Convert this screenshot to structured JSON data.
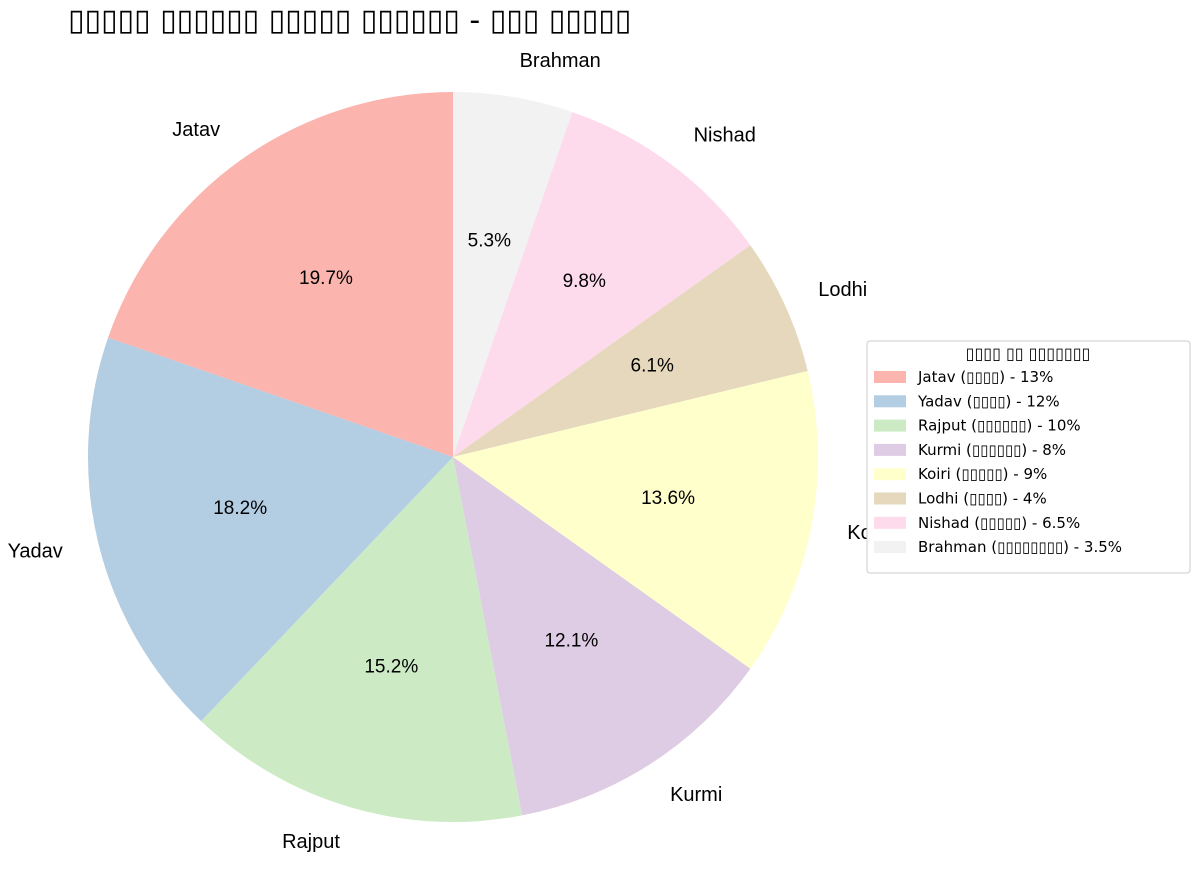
{
  "chart_data": {
    "type": "pie",
    "title": "▯▯▯▯▯ ▯▯▯▯▯▯ ▯▯▯▯▯ ▯▯▯▯▯▯ - ▯▯▯ ▯▯▯▯▯",
    "start_angle_deg": 90,
    "direction": "clockwise",
    "slices": [
      {
        "label": "Brahman",
        "value": 3.5,
        "pct_label": "5.3%",
        "color": "#f2f2f2",
        "legend": "Brahman (▯▯▯▯▯▯▯▯) - 3.5%"
      },
      {
        "label": "Nishad",
        "value": 6.5,
        "pct_label": "9.8%",
        "color": "#fddaec",
        "legend": "Nishad (▯▯▯▯▯) - 6.5%"
      },
      {
        "label": "Lodhi",
        "value": 4,
        "pct_label": "6.1%",
        "color": "#e5d8bd",
        "legend": "Lodhi (▯▯▯▯) - 4%"
      },
      {
        "label": "Koiri",
        "value": 9,
        "pct_label": "13.6%",
        "color": "#ffffcc",
        "legend": "Koiri (▯▯▯▯▯) - 9%"
      },
      {
        "label": "Kurmi",
        "value": 8,
        "pct_label": "12.1%",
        "color": "#decbe4",
        "legend": "Kurmi (▯▯▯▯▯▯) - 8%"
      },
      {
        "label": "Rajput",
        "value": 10,
        "pct_label": "15.2%",
        "color": "#ccebc5",
        "legend": "Rajput (▯▯▯▯▯▯) - 10%"
      },
      {
        "label": "Yadav",
        "value": 12,
        "pct_label": "18.2%",
        "color": "#b3cde3",
        "legend": "Yadav (▯▯▯▯) - 12%"
      },
      {
        "label": "Jatav",
        "value": 13,
        "pct_label": "19.7%",
        "color": "#fbb4ae",
        "legend": "Jatav (▯▯▯▯) - 13%"
      }
    ],
    "legend": {
      "title": "▯▯▯▯ ▯▯ ▯▯▯▯▯▯▯",
      "placement": "right",
      "order": [
        "Jatav",
        "Yadav",
        "Rajput",
        "Kurmi",
        "Koiri",
        "Lodhi",
        "Nishad",
        "Brahman"
      ]
    }
  }
}
